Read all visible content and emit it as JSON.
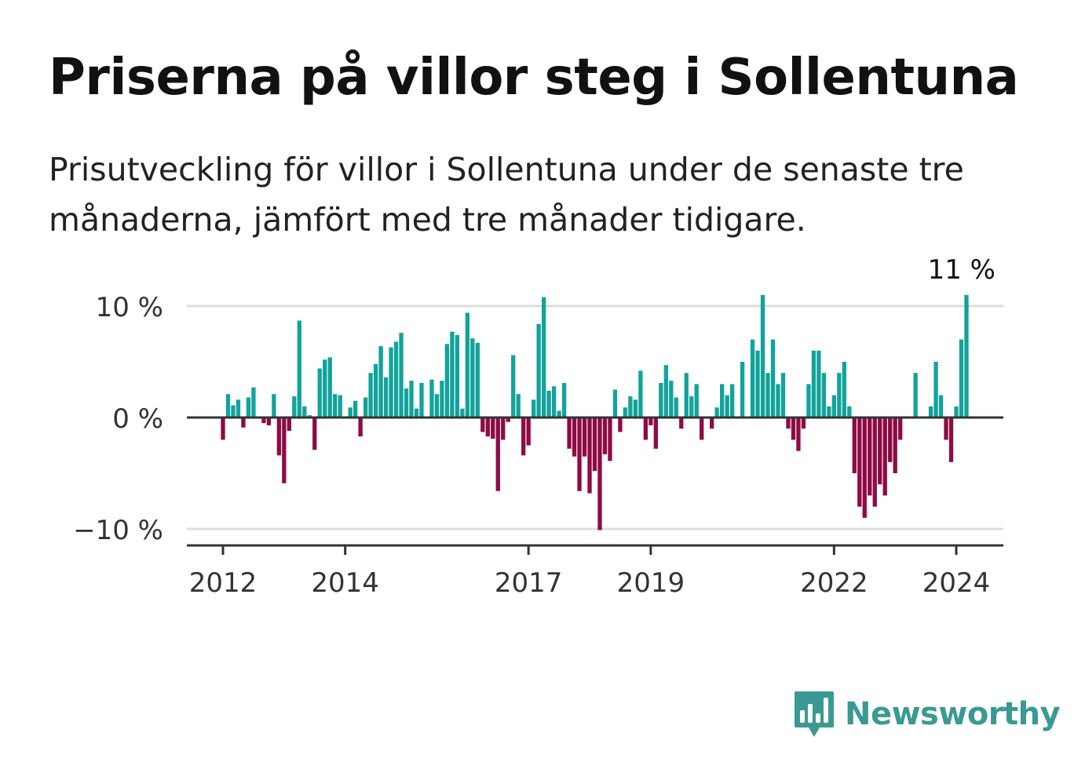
{
  "header": {
    "title": "Priserna på villor steg i Sollentuna",
    "subtitle": "Prisutveckling för villor i Sollentuna under de senaste tre månaderna, jämfört med tre månader tidigare."
  },
  "brand": {
    "name": "Newsworthy",
    "logo_icon": "newsworthy-bar-chart-icon"
  },
  "colors": {
    "positive": "#12a39a",
    "negative": "#8e0b45",
    "grid": "#dddddd",
    "axis": "#333333",
    "brand": "#3a9a93"
  },
  "chart_data": {
    "type": "bar",
    "x_start": "2012-01",
    "x_step": "month",
    "value_unit": "%",
    "ylim": [
      -11.5,
      12
    ],
    "y_ticks": [
      {
        "value": 10,
        "label": "10 %"
      },
      {
        "value": 0,
        "label": "0 %"
      },
      {
        "value": -10,
        "label": "−10 %"
      }
    ],
    "x_ticks": [
      {
        "label": "2012",
        "index": 0
      },
      {
        "label": "2014",
        "index": 24
      },
      {
        "label": "2017",
        "index": 60
      },
      {
        "label": "2019",
        "index": 84
      },
      {
        "label": "2022",
        "index": 120
      },
      {
        "label": "2024",
        "index": 144
      }
    ],
    "annotation": {
      "label": "11 %",
      "index": 146
    },
    "grid": true,
    "values": [
      -2,
      2.1,
      1.1,
      1.6,
      -0.9,
      1.8,
      2.7,
      0,
      -0.5,
      -0.7,
      2.1,
      -3.4,
      -5.9,
      -1.2,
      1.9,
      8.7,
      1,
      0.2,
      -2.9,
      4.4,
      5.2,
      5.4,
      2.1,
      2.0,
      0,
      0.9,
      1.5,
      -1.7,
      1.8,
      4,
      4.8,
      6.4,
      3.6,
      6.3,
      6.8,
      7.6,
      2.6,
      3.3,
      0.8,
      3.1,
      0,
      3.4,
      2.1,
      3.3,
      6.6,
      7.7,
      7.4,
      0.8,
      9.4,
      7.1,
      6.7,
      -1.3,
      -1.7,
      -1.9,
      -6.6,
      -2,
      -0.4,
      5.6,
      2.1,
      -3.4,
      -2.5,
      1.6,
      8.4,
      10.8,
      2.4,
      2.8,
      0.6,
      3.1,
      -2.8,
      -3.5,
      -6.6,
      -3.5,
      -6.8,
      -4.8,
      -10.1,
      -3.3,
      -3.9,
      2.5,
      -1.3,
      0.9,
      1.9,
      1.6,
      4.2,
      -2,
      -0.7,
      -2.8,
      3.1,
      4.7,
      3.3,
      1.8,
      -1,
      4,
      1.9,
      3,
      -2,
      0,
      -1,
      0.9,
      3,
      2,
      3,
      0,
      5,
      0,
      7,
      6,
      11,
      4,
      7,
      3,
      4,
      -1,
      -2,
      -3,
      -1,
      3,
      6,
      6,
      4,
      1,
      2,
      4,
      5,
      1,
      -5,
      -8,
      -9,
      -7,
      -8,
      -6,
      -7,
      -4,
      -5,
      -2,
      0,
      0,
      4,
      0,
      0,
      1,
      5,
      2,
      -2,
      -4,
      1,
      7,
      11
    ]
  }
}
